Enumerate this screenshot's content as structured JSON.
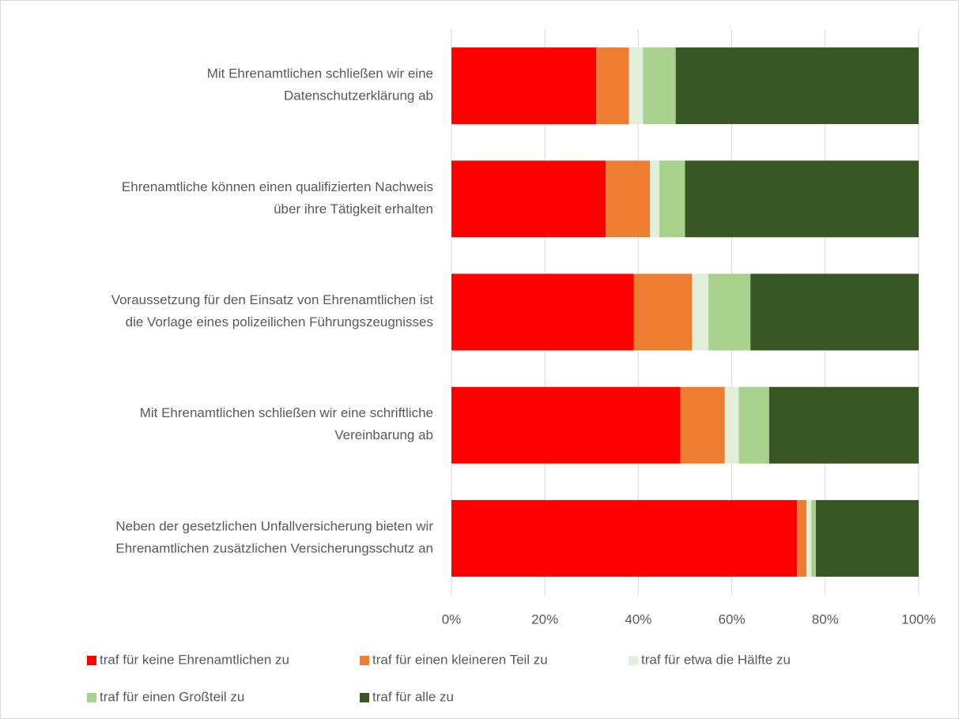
{
  "chart_data": {
    "type": "stacked-barh",
    "categories": [
      [
        "Mit Ehrenamtlichen schließen wir eine",
        "Datenschutzerklärung ab"
      ],
      [
        "Ehrenamtliche können einen qualifizierten Nachweis",
        "über ihre Tätigkeit erhalten"
      ],
      [
        "Voraussetzung für den Einsatz von Ehrenamtlichen ist",
        "die Vorlage eines polizeilichen Führungszeugnisses"
      ],
      [
        "Mit Ehrenamtlichen schließen wir eine schriftliche",
        "Vereinbarung ab"
      ],
      [
        "Neben der gesetzlichen Unfallversicherung bieten wir",
        "Ehrenamtlichen zusätzlichen Versicherungsschutz an"
      ]
    ],
    "series": [
      {
        "name": "traf für keine Ehrenamtlichen zu",
        "color": "#ff0000",
        "values": [
          31,
          33,
          39,
          49,
          74
        ]
      },
      {
        "name": "traf für einen kleineren Teil zu",
        "color": "#ed7d31",
        "values": [
          7,
          9.5,
          12.5,
          9.5,
          2
        ]
      },
      {
        "name": "traf für etwa die Hälfte zu",
        "color": "#e2efda",
        "values": [
          3,
          2,
          3.5,
          3,
          1
        ]
      },
      {
        "name": "traf für einen Großteil zu",
        "color": "#a9d18e",
        "values": [
          7,
          5.5,
          9,
          6.5,
          1
        ]
      },
      {
        "name": "traf für alle zu",
        "color": "#375623",
        "values": [
          52,
          50,
          36,
          32,
          22
        ]
      }
    ],
    "xlim": [
      0,
      100
    ],
    "xticks": [
      {
        "value": 0,
        "label": "0%"
      },
      {
        "value": 20,
        "label": "20%"
      },
      {
        "value": 40,
        "label": "40%"
      },
      {
        "value": 60,
        "label": "60%"
      },
      {
        "value": 80,
        "label": "80%"
      },
      {
        "value": 100,
        "label": "100%"
      }
    ],
    "grid": true,
    "legend": "bottom"
  }
}
